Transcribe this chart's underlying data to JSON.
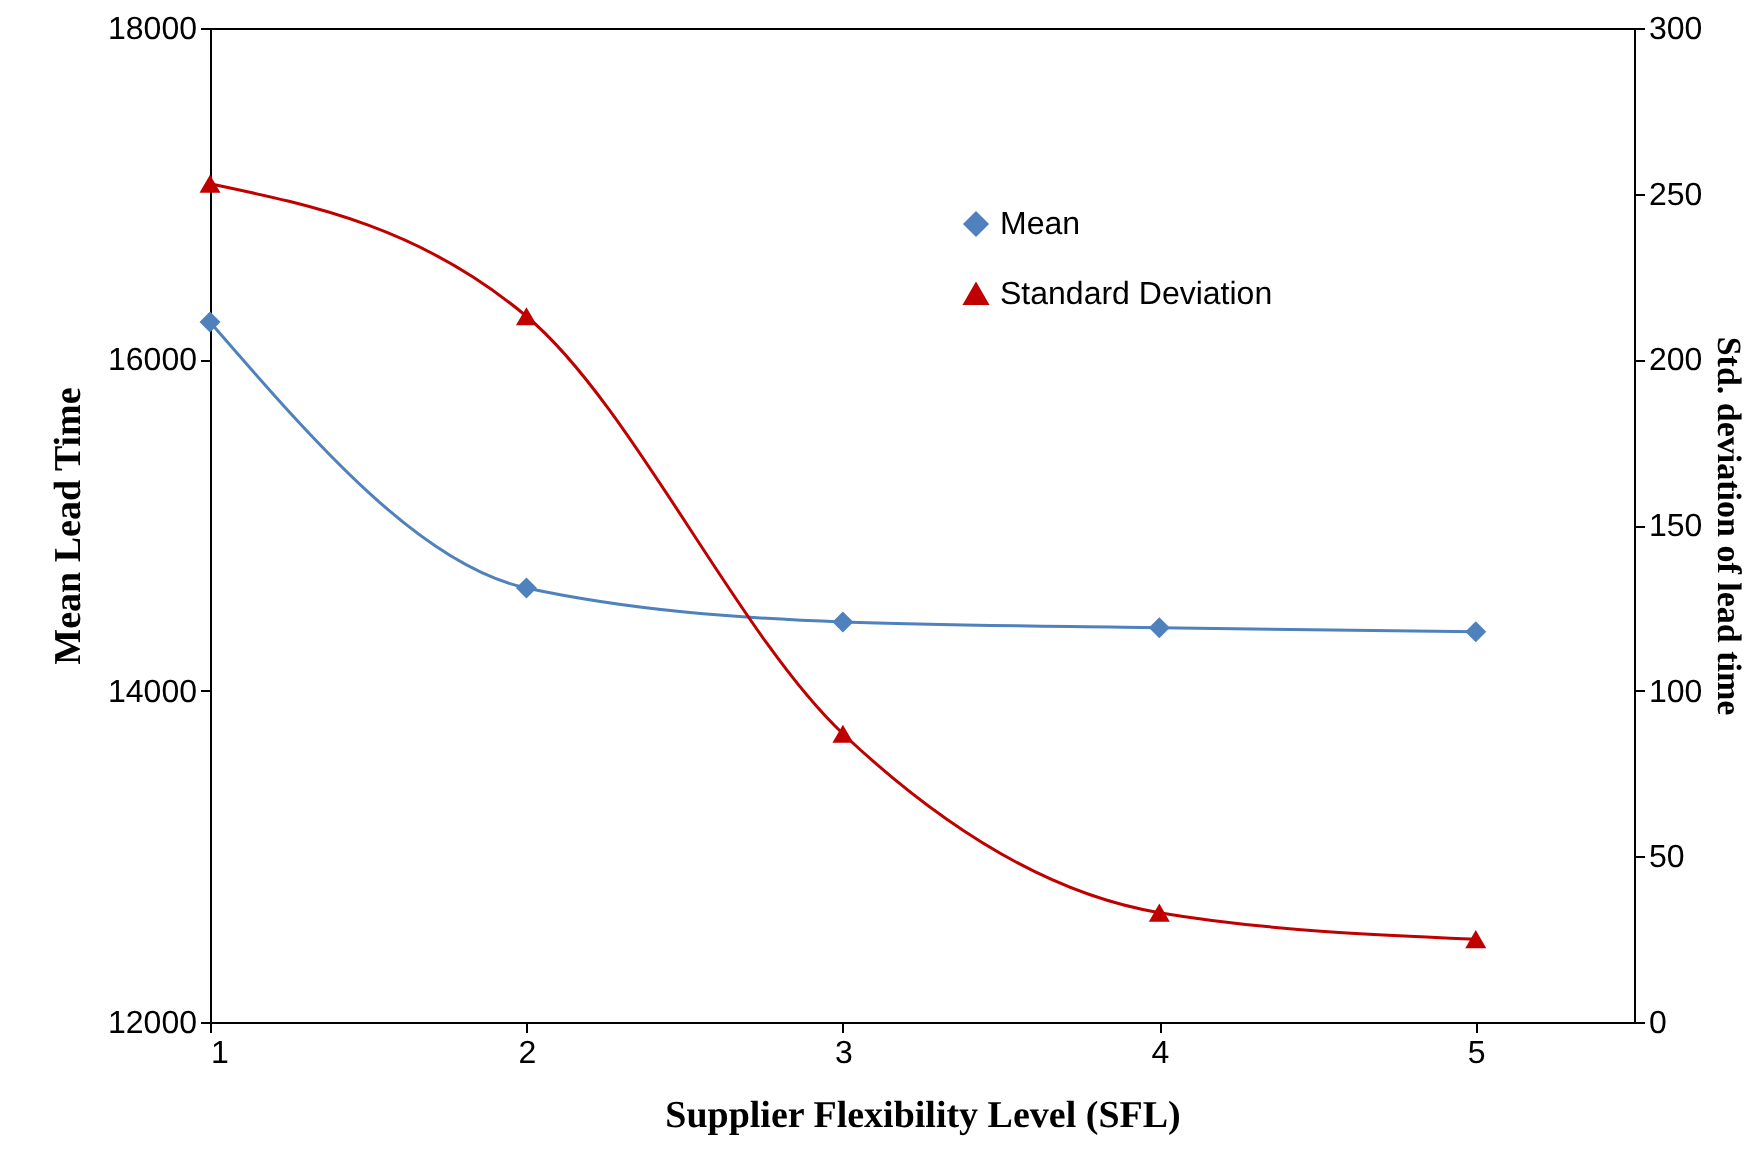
{
  "chart_data": {
    "type": "line",
    "xlabel": "Supplier Flexibility Level (SFL)",
    "ylabel": "Mean Lead Time",
    "y2label": "Std. deviation of lead time",
    "x": [
      1,
      2,
      3,
      4,
      5
    ],
    "xlim": [
      1,
      5.5
    ],
    "xticks": [
      1,
      2,
      3,
      4,
      5
    ],
    "ylim": [
      12000,
      18000
    ],
    "yticks": [
      12000,
      14000,
      16000,
      18000
    ],
    "y2lim": [
      0,
      300
    ],
    "y2ticks": [
      0,
      50,
      100,
      150,
      200,
      250,
      300
    ],
    "series": [
      {
        "name": "Mean",
        "color": "#4f81bd",
        "marker": "diamond",
        "values": [
          16225,
          14620,
          14415,
          14380,
          14355
        ]
      },
      {
        "name": "Standard Deviation",
        "color": "#c00000",
        "marker": "triangle",
        "axis": "y2",
        "values": [
          253,
          213,
          87,
          33,
          25
        ]
      }
    ],
    "legend": "top right",
    "grid": false
  }
}
